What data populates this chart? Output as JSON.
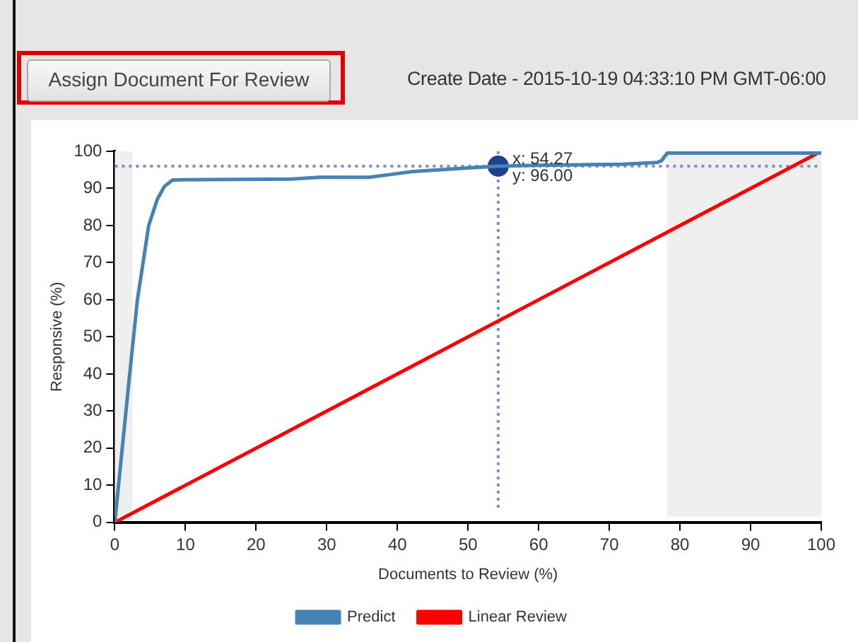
{
  "chart_data": {
    "type": "line",
    "xlabel": "Documents to Review (%)",
    "ylabel": "Responsive (%)",
    "annotations": [
      "Assign Document For Review",
      "Create Date - 2015-10-19 04:33:10 PM GMT-06:00",
      {
        "text": "x: 54.27",
        "x": 54.27,
        "y": 96
      },
      {
        "text": "y: 96.00",
        "x": 54.27,
        "y": 96
      }
    ],
    "xlim": [
      0,
      100
    ],
    "ylim": [
      0,
      100
    ],
    "xticks": [
      0,
      10,
      20,
      30,
      40,
      50,
      60,
      70,
      80,
      90,
      100
    ],
    "yticks": [
      0,
      10,
      20,
      30,
      40,
      50,
      60,
      70,
      80,
      90,
      100
    ],
    "grid": false,
    "legend": "bottom",
    "marker": "none",
    "line_style": "solid",
    "series": [
      {
        "name": "Predict",
        "color": "#4682b4",
        "x": [
          0,
          2,
          3.2,
          4,
          4.8,
          6,
          7,
          8.2,
          25,
          29,
          36,
          38,
          42,
          50,
          54.27,
          62,
          72,
          76.8,
          77.4,
          78.2,
          100
        ],
        "values": [
          0,
          38,
          60,
          70,
          80,
          87,
          90.5,
          92.3,
          92.5,
          93,
          93,
          93.5,
          94.5,
          95.5,
          96,
          96.3,
          96.5,
          97,
          97.5,
          99.5,
          99.5
        ]
      },
      {
        "name": "Linear Review",
        "color": "#ff0000",
        "x": [
          0,
          100
        ],
        "values": [
          0,
          100
        ]
      },
      {
        "type": "scatter",
        "color": "#1f3f8f",
        "x": [
          54.27
        ],
        "values": [
          96
        ],
        "marker": "circle"
      }
    ],
    "ref_lines": [
      {
        "axis": "x",
        "value": 54.27,
        "color": "#7f8fc8",
        "line_style": "dotted"
      },
      {
        "axis": "y",
        "value": 96,
        "color": "#7f8fc8",
        "line_style": "dotted"
      }
    ],
    "bands": [
      {
        "axis": "x",
        "from": 0,
        "to": 2.5,
        "color": "#efefef"
      },
      {
        "axis": "x",
        "from": 78.2,
        "to": 100,
        "color": "#efefef"
      }
    ]
  }
}
